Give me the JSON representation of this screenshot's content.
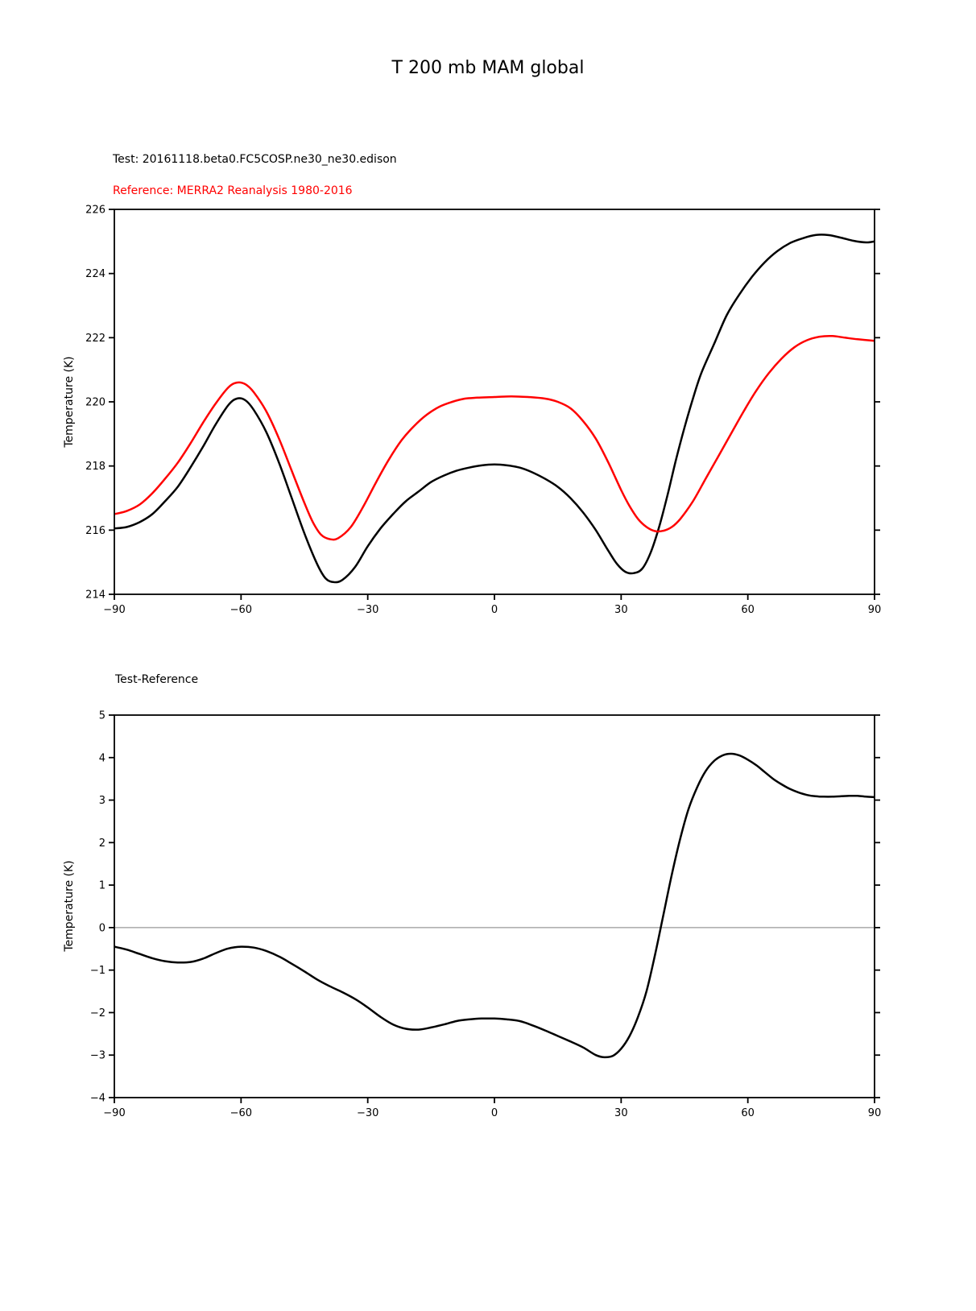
{
  "figure": {
    "title": "T 200 mb MAM global",
    "background_color": "#ffffff"
  },
  "header": {
    "test_label": "Test: 20161118.beta0.FC5COSP.ne30_ne30.edison",
    "reference_label": "Reference: MERRA2 Reanalysis 1980-2016",
    "reference_label_color": "#ff0000",
    "diff_panel_label": "Test-Reference"
  },
  "chart_data": [
    {
      "type": "line",
      "panel": "top",
      "ylabel": "Temperature (K)",
      "xlim": [
        -90,
        90
      ],
      "ylim": [
        214,
        226
      ],
      "xticks": {
        "values": [
          -90,
          -60,
          -30,
          0,
          30,
          60,
          90
        ],
        "labels": [
          "−90",
          "−60",
          "−30",
          "0",
          "30",
          "60",
          "90"
        ]
      },
      "yticks": {
        "values": [
          214,
          216,
          218,
          220,
          222,
          224,
          226
        ],
        "labels": [
          "214",
          "216",
          "218",
          "220",
          "222",
          "224",
          "226"
        ]
      },
      "grid": false,
      "legend": "none (series identified by colored header labels)",
      "series": [
        {
          "name": "Test",
          "color": "#000000",
          "x": [
            -90,
            -87,
            -84,
            -81,
            -78,
            -75,
            -72,
            -69,
            -66,
            -63,
            -61,
            -59,
            -57,
            -54,
            -51,
            -48,
            -45,
            -42,
            -40,
            -38,
            -36,
            -33,
            -30,
            -27,
            -24,
            -21,
            -18,
            -15,
            -12,
            -9,
            -6,
            -3,
            0,
            3,
            6,
            9,
            12,
            15,
            18,
            21,
            24,
            27,
            29,
            31,
            33,
            35,
            37,
            39,
            41,
            43,
            45,
            47,
            49,
            52,
            55,
            58,
            61,
            64,
            67,
            70,
            73,
            76,
            79,
            82,
            85,
            88,
            90
          ],
          "y": [
            216.05,
            216.1,
            216.25,
            216.5,
            216.9,
            217.35,
            217.95,
            218.6,
            219.3,
            219.9,
            220.1,
            220.05,
            219.75,
            219.05,
            218.1,
            217.0,
            215.9,
            214.95,
            214.5,
            214.38,
            214.45,
            214.85,
            215.5,
            216.05,
            216.5,
            216.9,
            217.2,
            217.5,
            217.7,
            217.85,
            217.95,
            218.02,
            218.05,
            218.02,
            217.95,
            217.8,
            217.6,
            217.35,
            217.0,
            216.55,
            216.0,
            215.35,
            214.95,
            214.7,
            214.66,
            214.8,
            215.3,
            216.1,
            217.1,
            218.2,
            219.2,
            220.1,
            220.9,
            221.8,
            222.7,
            223.35,
            223.9,
            224.35,
            224.7,
            224.95,
            225.1,
            225.2,
            225.2,
            225.12,
            225.02,
            224.97,
            225.0
          ]
        },
        {
          "name": "Reference",
          "color": "#ff0000",
          "x": [
            -90,
            -87,
            -84,
            -81,
            -78,
            -75,
            -72,
            -69,
            -66,
            -63,
            -61,
            -59,
            -57,
            -54,
            -51,
            -48,
            -45,
            -43,
            -41,
            -39,
            -37,
            -34,
            -31,
            -28,
            -25,
            -22,
            -19,
            -16,
            -13,
            -10,
            -7,
            -4,
            0,
            4,
            8,
            12,
            15,
            18,
            21,
            24,
            27,
            30,
            32,
            34,
            36,
            38,
            40,
            42,
            44,
            47,
            50,
            53,
            56,
            59,
            62,
            65,
            68,
            71,
            74,
            77,
            80,
            83,
            86,
            90
          ],
          "y": [
            216.5,
            216.6,
            216.8,
            217.15,
            217.6,
            218.1,
            218.7,
            219.35,
            219.95,
            220.45,
            220.6,
            220.55,
            220.3,
            219.7,
            218.85,
            217.85,
            216.85,
            216.25,
            215.85,
            215.72,
            215.75,
            216.1,
            216.75,
            217.5,
            218.2,
            218.8,
            219.25,
            219.6,
            219.85,
            220.0,
            220.1,
            220.13,
            220.15,
            220.17,
            220.15,
            220.1,
            220.0,
            219.8,
            219.4,
            218.85,
            218.1,
            217.25,
            216.75,
            216.35,
            216.1,
            215.97,
            215.98,
            216.1,
            216.35,
            216.9,
            217.6,
            218.3,
            219.0,
            219.7,
            220.35,
            220.9,
            221.35,
            221.7,
            221.92,
            222.03,
            222.05,
            222.0,
            221.95,
            221.9
          ]
        }
      ]
    },
    {
      "type": "line",
      "panel": "bottom",
      "ylabel": "Temperature (K)",
      "xlim": [
        -90,
        90
      ],
      "ylim": [
        -4,
        5
      ],
      "xticks": {
        "values": [
          -90,
          -60,
          -30,
          0,
          30,
          60,
          90
        ],
        "labels": [
          "−90",
          "−60",
          "−30",
          "0",
          "30",
          "60",
          "90"
        ]
      },
      "yticks": {
        "values": [
          -4,
          -3,
          -2,
          -1,
          0,
          1,
          2,
          3,
          4,
          5
        ],
        "labels": [
          "−4",
          "−3",
          "−2",
          "−1",
          "0",
          "1",
          "2",
          "3",
          "4",
          "5"
        ]
      },
      "grid": false,
      "zero_line": true,
      "zero_line_color": "#999999",
      "series": [
        {
          "name": "Test-Reference",
          "color": "#000000",
          "x": [
            -90,
            -87,
            -84,
            -81,
            -78,
            -75,
            -72,
            -69,
            -66,
            -63,
            -60,
            -57,
            -54,
            -51,
            -48,
            -45,
            -42,
            -39,
            -36,
            -33,
            -30,
            -27,
            -24,
            -21,
            -18,
            -15,
            -12,
            -9,
            -6,
            -3,
            0,
            3,
            6,
            9,
            12,
            15,
            18,
            21,
            24,
            26,
            28,
            30,
            32,
            34,
            36,
            38,
            40,
            42,
            44,
            46,
            48,
            50,
            52,
            54,
            56,
            58,
            60,
            62,
            64,
            66,
            68,
            70,
            72,
            74,
            76,
            78,
            80,
            82,
            84,
            86,
            88,
            90
          ],
          "y": [
            -0.45,
            -0.52,
            -0.62,
            -0.72,
            -0.79,
            -0.82,
            -0.81,
            -0.73,
            -0.6,
            -0.49,
            -0.45,
            -0.47,
            -0.55,
            -0.68,
            -0.85,
            -1.03,
            -1.22,
            -1.38,
            -1.52,
            -1.68,
            -1.88,
            -2.1,
            -2.28,
            -2.38,
            -2.4,
            -2.35,
            -2.28,
            -2.2,
            -2.16,
            -2.14,
            -2.14,
            -2.16,
            -2.2,
            -2.3,
            -2.42,
            -2.55,
            -2.68,
            -2.82,
            -3.0,
            -3.05,
            -3.02,
            -2.85,
            -2.55,
            -2.1,
            -1.5,
            -0.65,
            0.3,
            1.25,
            2.1,
            2.8,
            3.3,
            3.68,
            3.92,
            4.05,
            4.09,
            4.05,
            3.95,
            3.82,
            3.66,
            3.5,
            3.37,
            3.26,
            3.18,
            3.12,
            3.09,
            3.08,
            3.08,
            3.09,
            3.1,
            3.1,
            3.08,
            3.07
          ]
        }
      ]
    }
  ]
}
